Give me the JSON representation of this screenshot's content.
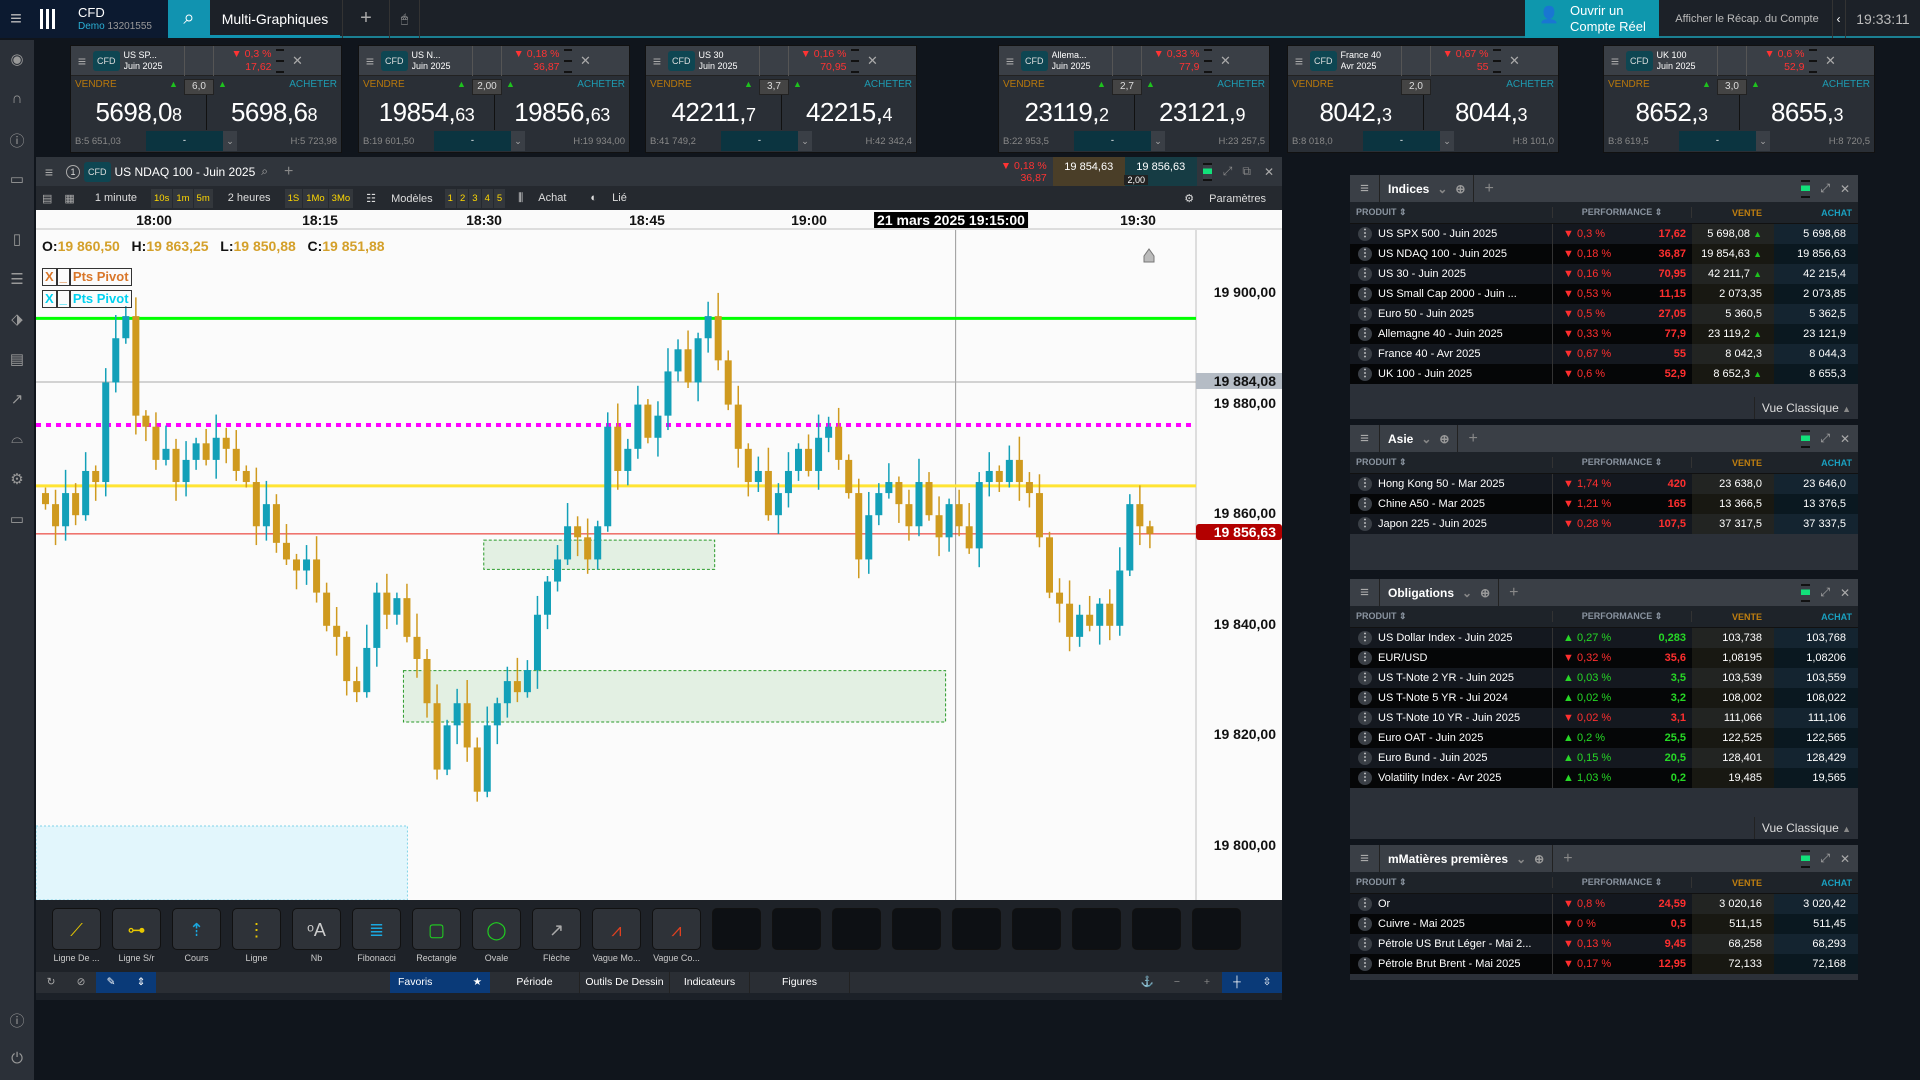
{
  "topbar": {
    "brand": "CFD",
    "demo": "Demo",
    "account": "13201555",
    "tab": "Multi-Graphiques",
    "open_account": "Ouvrir un Compte Réel",
    "recap": "Afficher le Récap. du Compte",
    "clock": "19:33:11"
  },
  "cards": [
    {
      "badge": "CFD",
      "name1": "US SP...",
      "name2": "Juin 2025",
      "pct": "▼ 0,3 %",
      "chg": "17,62",
      "sell_label": "VENDRE",
      "buy_label": "ACHETER",
      "spread": "6,0",
      "arrows": [
        true,
        true
      ],
      "sell_main": "5698,0",
      "sell_small": "8",
      "buy_main": "5698,6",
      "buy_small": "8",
      "low": "B:5 651,03",
      "high": "H:5 723,98",
      "qty": "-"
    },
    {
      "badge": "CFD",
      "name1": "US N...",
      "name2": "Juin 2025",
      "pct": "▼ 0,18 %",
      "chg": "36,87",
      "sell_label": "VENDRE",
      "buy_label": "ACHETER",
      "spread": "2,00",
      "arrows": [
        true,
        true
      ],
      "sell_main": "19854,",
      "sell_small": "63",
      "buy_main": "19856,",
      "buy_small": "63",
      "low": "B:19 601,50",
      "high": "H:19 934,00",
      "qty": "-"
    },
    {
      "badge": "CFD",
      "name1": "US 30",
      "name2": "Juin 2025",
      "pct": "▼ 0,16 %",
      "chg": "70,95",
      "sell_label": "VENDRE",
      "buy_label": "ACHETER",
      "spread": "3,7",
      "arrows": [
        true,
        true
      ],
      "sell_main": "42211,",
      "sell_small": "7",
      "buy_main": "42215,",
      "buy_small": "4",
      "low": "B:41 749,2",
      "high": "H:42 342,4",
      "qty": "-"
    },
    {
      "badge": "CFD",
      "name1": "Allema...",
      "name2": "Juin 2025",
      "pct": "▼ 0,33 %",
      "chg": "77,9",
      "sell_label": "VENDRE",
      "buy_label": "ACHETER",
      "spread": "2,7",
      "arrows": [
        true,
        true
      ],
      "sell_main": "23119,",
      "sell_small": "2",
      "buy_main": "23121,",
      "buy_small": "9",
      "low": "B:22 953,5",
      "high": "H:23 257,5",
      "qty": "-"
    },
    {
      "badge": "CFD",
      "name1": "France 40",
      "name2": "Avr 2025",
      "pct": "▼ 0,67 %",
      "chg": "55",
      "sell_label": "VENDRE",
      "buy_label": "ACHETER",
      "spread": "2,0",
      "arrows": [
        false,
        false
      ],
      "sell_main": "8042,",
      "sell_small": "3",
      "buy_main": "8044,",
      "buy_small": "3",
      "low": "B:8 018,0",
      "high": "H:8 101,0",
      "qty": "-"
    },
    {
      "badge": "CFD",
      "name1": "UK 100",
      "name2": "Juin 2025",
      "pct": "▼ 0,6 %",
      "chg": "52,9",
      "sell_label": "VENDRE",
      "buy_label": "ACHETER",
      "spread": "3,0",
      "arrows": [
        true,
        true
      ],
      "sell_main": "8652,",
      "sell_small": "3",
      "buy_main": "8655,",
      "buy_small": "3",
      "low": "B:8 619,5",
      "high": "H:8 720,5",
      "qty": "-"
    }
  ],
  "chart_header": {
    "num": "1",
    "badge": "CFD",
    "instrument": "US NDAQ 100 - Juin 2025",
    "pct": "▼ 0,18 %",
    "chg": "36,87",
    "sell": "19 854,63",
    "buy": "19 856,63",
    "spread": "2,00"
  },
  "chart_toolbar": {
    "interval": "1 minute",
    "quick": [
      "10s",
      "1m",
      "5m"
    ],
    "range": "2 heures",
    "ranges": [
      "1S",
      "1Mo",
      "3Mo"
    ],
    "models": "Modèles",
    "slots": [
      "1",
      "2",
      "3",
      "4",
      "5"
    ],
    "buy": "Achat",
    "linked": "Lié",
    "settings": "Paramètres"
  },
  "chart_data": {
    "type": "candlestick",
    "title": "US NDAQ 100 - Juin 2025",
    "interval": "1 minute",
    "time_labels": [
      "18:00",
      "18:15",
      "18:30",
      "18:45",
      "19:00",
      "21 mars 2025 19:15:00",
      "19:30"
    ],
    "ohlc": {
      "o_label": "O:",
      "o": "19 860,50",
      "h_label": "H:",
      "h": "19 863,25",
      "l_label": "L:",
      "l": "19 850,88",
      "c_label": "C:",
      "c": "19 851,88"
    },
    "y_ticks": [
      "19 900,00",
      "19 880,00",
      "19 860,00",
      "19 840,00",
      "19 820,00",
      "19 800,00"
    ],
    "y_tick_values": [
      19900,
      19880,
      19860,
      19840,
      19820,
      19800
    ],
    "ylim": [
      19788,
      19911.5
    ],
    "closes": [
      19862,
      19858,
      19864,
      19860,
      19868,
      19866,
      19884,
      19892,
      19896,
      19878,
      19876,
      19870,
      19872,
      19866,
      19870,
      19873,
      19870,
      19874,
      19872,
      19868,
      19866,
      19858,
      19862,
      19855,
      19852,
      19850,
      19852,
      19846,
      19840,
      19838,
      19830,
      19828,
      19836,
      19846,
      19842,
      19845,
      19838,
      19834,
      19826,
      19814,
      19822,
      19826,
      19818,
      19810,
      19822,
      19826,
      19830,
      19828,
      19832,
      19842,
      19848,
      19852,
      19858,
      19856,
      19852,
      19858,
      19876,
      19868,
      19872,
      19880,
      19874,
      19878,
      19886,
      19890,
      19884,
      19892,
      19896,
      19888,
      19880,
      19872,
      19866,
      19868,
      19860,
      19864,
      19868,
      19872,
      19868,
      19874,
      19876,
      19870,
      19864,
      19852,
      19860,
      19864,
      19866,
      19862,
      19858,
      19866,
      19860,
      19856,
      19862,
      19858,
      19854,
      19866,
      19868,
      19866,
      19870,
      19866,
      19864,
      19856,
      19846,
      19844,
      19838,
      19842,
      19840,
      19844,
      19840,
      19850,
      19862,
      19858,
      19856.63
    ],
    "levels": [
      {
        "name": "resistance",
        "price": 19895.6,
        "color": "#00ff00",
        "style": "solid"
      },
      {
        "name": "pivot",
        "price": 19876.3,
        "color": "#ff00ff",
        "style": "dotted"
      },
      {
        "name": "support",
        "price": 19865.3,
        "color": "#ffe433",
        "style": "solid"
      },
      {
        "name": "last",
        "price": 19856.63,
        "color": "#e8231a",
        "style": "thin"
      },
      {
        "name": "hover",
        "price": 19884.08,
        "color": "#aaaaaa",
        "style": "thin"
      }
    ],
    "zones": [
      {
        "from_index": 44,
        "to_index": 67,
        "top": 19855.5,
        "bottom": 19850.2
      },
      {
        "from_index": 36,
        "to_index": 90,
        "top": 19831.9,
        "bottom": 19822.6
      }
    ],
    "crosshair_index": 91,
    "last_price_label": "19 856,63",
    "hover_price_label": "19 884,08",
    "up_color": "#13a0b8",
    "down_color": "#cf9a1f"
  },
  "pivots": [
    {
      "x": "X",
      "min": "_",
      "label": "Pts Pivot",
      "color": "#d9772a"
    },
    {
      "x": "X",
      "min": "_",
      "label": "Pts Pivot",
      "color": "#00d2f0"
    }
  ],
  "tools": [
    "Ligne De ...",
    "Ligne S/r",
    "Cours",
    "Ligne",
    "Nb",
    "Fibonacci",
    "Rectangle",
    "Ovale",
    "Flèche",
    "Vague Mo...",
    "Vague Co..."
  ],
  "bottom_tabs": {
    "fav": "Favoris",
    "period": "Période",
    "drawing": "Outils De Dessin",
    "indicators": "Indicateurs",
    "figures": "Figures"
  },
  "cols": {
    "product": "PRODUIT",
    "perf": "PERFORMANCE",
    "sell": "VENTE",
    "buy": "ACHAT",
    "classic": "Vue Classique"
  },
  "panels": [
    {
      "title": "Indices",
      "rows": [
        [
          "US SPX 500 - Juin 2025",
          "0,3 %",
          "17,62",
          "5 698,08",
          "5 698,68",
          "down",
          true
        ],
        [
          "US NDAQ 100 - Juin 2025",
          "0,18 %",
          "36,87",
          "19 854,63",
          "19 856,63",
          "down",
          true
        ],
        [
          "US 30 - Juin 2025",
          "0,16 %",
          "70,95",
          "42 211,7",
          "42 215,4",
          "down",
          true
        ],
        [
          "US Small Cap 2000 - Juin ...",
          "0,53 %",
          "11,15",
          "2 073,35",
          "2 073,85",
          "down",
          false
        ],
        [
          "Euro 50 - Juin 2025",
          "0,5 %",
          "27,05",
          "5 360,5",
          "5 362,5",
          "down",
          false
        ],
        [
          "Allemagne 40 - Juin 2025",
          "0,33 %",
          "77,9",
          "23 119,2",
          "23 121,9",
          "down",
          true
        ],
        [
          "France 40 - Avr 2025",
          "0,67 %",
          "55",
          "8 042,3",
          "8 044,3",
          "down",
          false
        ],
        [
          "UK 100 - Juin 2025",
          "0,6 %",
          "52,9",
          "8 652,3",
          "8 655,3",
          "down",
          true
        ]
      ]
    },
    {
      "title": "Asie",
      "rows": [
        [
          "Hong Kong 50 - Mar 2025",
          "1,74 %",
          "420",
          "23 638,0",
          "23 646,0",
          "down",
          false
        ],
        [
          "Chine A50 - Mar 2025",
          "1,21 %",
          "165",
          "13 366,5",
          "13 376,5",
          "down",
          false
        ],
        [
          "Japon 225 - Juin 2025",
          "0,28 %",
          "107,5",
          "37 317,5",
          "37 337,5",
          "down",
          false
        ]
      ]
    },
    {
      "title": "Obligations",
      "rows": [
        [
          "US Dollar Index - Juin 2025",
          "0,27 %",
          "0,283",
          "103,738",
          "103,768",
          "up",
          false
        ],
        [
          "EUR/USD",
          "0,32 %",
          "35,6",
          "1,08195",
          "1,08206",
          "down",
          false
        ],
        [
          "US T-Note 2 YR - Juin 2025",
          "0,03 %",
          "3,5",
          "103,539",
          "103,559",
          "up",
          false
        ],
        [
          "US T-Note 5 YR - Jui 2024",
          "0,02 %",
          "3,2",
          "108,002",
          "108,022",
          "up",
          false
        ],
        [
          "US T-Note 10 YR - Juin 2025",
          "0,02 %",
          "3,1",
          "111,066",
          "111,106",
          "down",
          false
        ],
        [
          "Euro OAT - Juin 2025",
          "0,2 %",
          "25,5",
          "122,525",
          "122,565",
          "up",
          false
        ],
        [
          "Euro Bund - Juin 2025",
          "0,15 %",
          "20,5",
          "128,401",
          "128,429",
          "up",
          false
        ],
        [
          "Volatility Index - Avr 2025",
          "1,03 %",
          "0,2",
          "19,485",
          "19,565",
          "up",
          false
        ]
      ]
    },
    {
      "title": "mMatières premières",
      "rows": [
        [
          "Or",
          "0,8 %",
          "24,59",
          "3 020,16",
          "3 020,42",
          "down",
          false
        ],
        [
          "Cuivre - Mai 2025",
          "0 %",
          "0,5",
          "511,15",
          "511,45",
          "down",
          false
        ],
        [
          "Pétrole US Brut Léger - Mai 2...",
          "0,13 %",
          "9,45",
          "68,258",
          "68,293",
          "down",
          false
        ],
        [
          "Pétrole Brut Brent - Mai 2025",
          "0,17 %",
          "12,95",
          "72,133",
          "72,168",
          "down",
          false
        ]
      ]
    }
  ]
}
